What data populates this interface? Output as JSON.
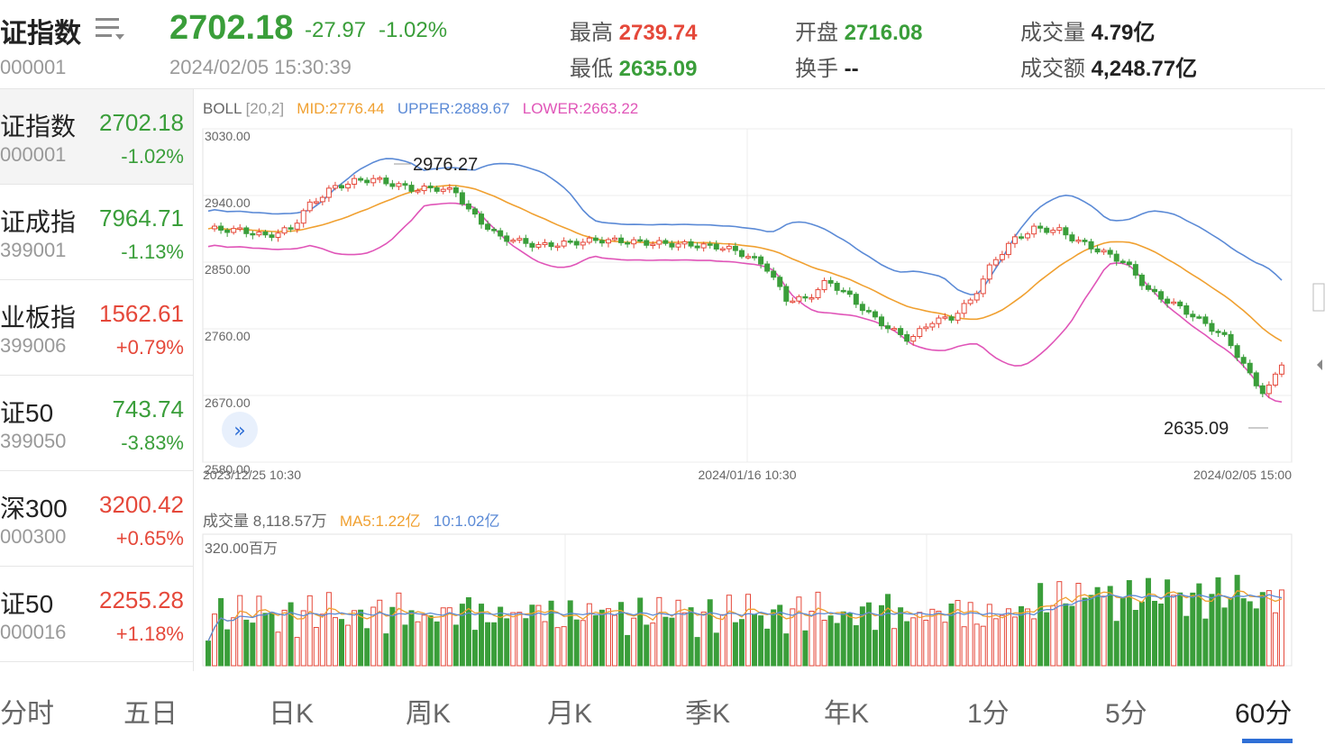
{
  "header": {
    "name": "证指数",
    "code": "000001",
    "price": "2702.18",
    "change": "-27.97",
    "change_pct": "-1.02%",
    "datetime": "2024/02/05 15:30:39",
    "high_label": "最高",
    "high": "2739.74",
    "low_label": "最低",
    "low": "2635.09",
    "open_label": "开盘",
    "open": "2716.08",
    "turnover_label": "换手",
    "turnover": "--",
    "volume_label": "成交量",
    "volume": "4.79亿",
    "amount_label": "成交额",
    "amount": "4,248.77亿"
  },
  "sidebar": {
    "items": [
      {
        "name": "证指数",
        "code": "000001",
        "price": "2702.18",
        "change": "-1.02%",
        "dir": "down",
        "active": true
      },
      {
        "name": "证成指",
        "code": "399001",
        "price": "7964.71",
        "change": "-1.13%",
        "dir": "down"
      },
      {
        "name": "业板指",
        "code": "399006",
        "price": "1562.61",
        "change": "+0.79%",
        "dir": "up"
      },
      {
        "name": "证50",
        "code": "399050",
        "price": "743.74",
        "change": "-3.83%",
        "dir": "down"
      },
      {
        "name": "深300",
        "code": "000300",
        "price": "3200.42",
        "change": "+0.65%",
        "dir": "up"
      },
      {
        "name": "证50",
        "code": "000016",
        "price": "2255.28",
        "change": "+1.18%",
        "dir": "up"
      }
    ]
  },
  "boll": {
    "name": "BOLL",
    "params": "[20,2]",
    "mid": "MID:2776.44",
    "upper": "UPPER:2889.67",
    "lower": "LOWER:2663.22"
  },
  "volume_legend": {
    "label": "成交量",
    "value": "8,118.57万",
    "ma5": "MA5:1.22亿",
    "ma10": "10:1.02亿",
    "axis_max": "320.00百万"
  },
  "price_axis": [
    "3030.00",
    "2940.00",
    "2850.00",
    "2760.00",
    "2670.00",
    "2580.00"
  ],
  "time_axis": [
    "2023/12/25 10:30",
    "2024/01/16 10:30",
    "2024/02/05 15:00"
  ],
  "annotations": {
    "max_label": "2976.27",
    "min_label": "2635.09"
  },
  "expand_icon": "»",
  "tabs": [
    "分时",
    "五日",
    "日K",
    "周K",
    "月K",
    "季K",
    "年K",
    "1分",
    "5分",
    "60分"
  ],
  "active_tab": "60分",
  "colors": {
    "up": "#e5483a",
    "down": "#3a9e3a",
    "mid": "#f0a030",
    "upper": "#5b8ad6",
    "lower": "#e055b8",
    "accent": "#2f6fd6"
  }
}
